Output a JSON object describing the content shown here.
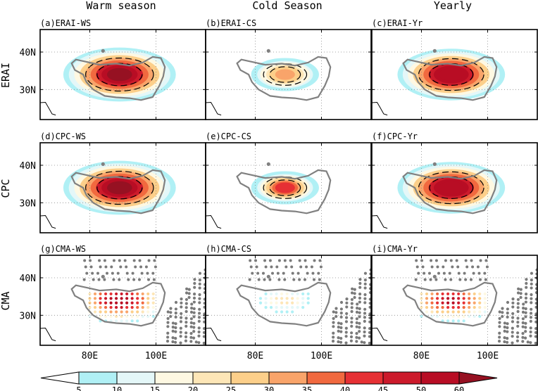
{
  "columns": [
    "Warm season",
    "Cold Season",
    "Yearly"
  ],
  "rows": [
    "ERAI",
    "CPC",
    "CMA"
  ],
  "panels": [
    {
      "label": "(a)ERAI-WS",
      "source": "ERAI",
      "season": "WS",
      "peak": 60,
      "spread": 1.0
    },
    {
      "label": "(b)ERAI-CS",
      "source": "ERAI",
      "season": "CS",
      "peak": 32,
      "spread": 0.55
    },
    {
      "label": "(c)ERAI-Yr",
      "source": "ERAI",
      "season": "Yr",
      "peak": 58,
      "spread": 0.95
    },
    {
      "label": "(d)CPC-WS",
      "source": "CPC",
      "season": "WS",
      "peak": 60,
      "spread": 1.0
    },
    {
      "label": "(e)CPC-CS",
      "source": "CPC",
      "season": "CS",
      "peak": 40,
      "spread": 0.55
    },
    {
      "label": "(f)CPC-Yr",
      "source": "CPC",
      "season": "Yr",
      "peak": 58,
      "spread": 0.95
    },
    {
      "label": "(g)CMA-WS",
      "source": "CMA",
      "season": "WS",
      "peak": 55,
      "spread": 1.0
    },
    {
      "label": "(h)CMA-CS",
      "source": "CMA",
      "season": "CS",
      "peak": 25,
      "spread": 0.6
    },
    {
      "label": "(i)CMA-Yr",
      "source": "CMA",
      "season": "Yr",
      "peak": 52,
      "spread": 0.95
    }
  ],
  "chart_data": {
    "type": "heatmap",
    "title": "",
    "xlabel": "",
    "ylabel": "",
    "xlim": [
      65,
      115
    ],
    "ylim": [
      22,
      46
    ],
    "xticks": [
      80,
      100
    ],
    "xtick_labels": [
      "80E",
      "100E"
    ],
    "yticks": [
      40,
      30
    ],
    "ytick_labels": [
      "40N",
      "30N"
    ],
    "grid": true,
    "colorbar": {
      "levels": [
        5,
        10,
        15,
        20,
        25,
        30,
        35,
        40,
        45,
        50,
        60
      ],
      "level_labels": [
        "5",
        "10",
        "15",
        "20",
        "25",
        "30",
        "35",
        "40",
        "45",
        "50",
        "60"
      ],
      "colors": [
        "#ffffff",
        "#b0f0f5",
        "#e4f7f8",
        "#fef8e2",
        "#fde6b7",
        "#fccf8a",
        "#f9a46a",
        "#f1693f",
        "#e63034",
        "#cc1a2b",
        "#b80d24",
        "#961122"
      ]
    },
    "center_lon": 89,
    "center_lat": 34,
    "station_grid": {
      "lon_step": 1.4,
      "lat_step": 1.3,
      "east_boundary_lon": 103
    }
  },
  "colors": {
    "plateau_outline": "#808080",
    "station_gray": "#7a7a7a",
    "grid_dot": "#888888"
  }
}
